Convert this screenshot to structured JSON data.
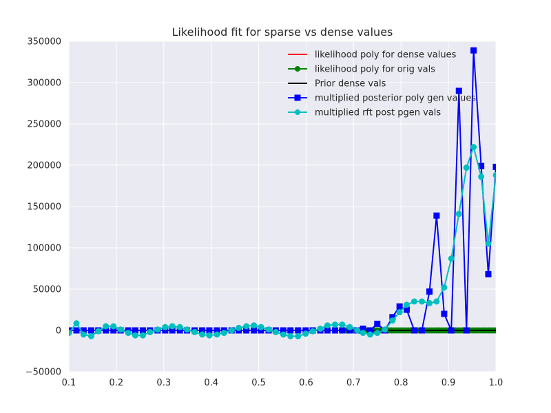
{
  "chart_data": {
    "type": "line",
    "title": "Likelihood fit for sparse vs dense values",
    "xlabel": "",
    "ylabel": "",
    "xlim": [
      0.1,
      1.0
    ],
    "ylim": [
      -50000,
      350000
    ],
    "x_ticks": [
      0.1,
      0.2,
      0.3,
      0.4,
      0.5,
      0.6,
      0.7,
      0.8,
      0.9,
      1.0
    ],
    "x_tick_labels": [
      "0.1",
      "0.2",
      "0.3",
      "0.4",
      "0.5",
      "0.6",
      "0.7",
      "0.8",
      "0.9",
      "1.0"
    ],
    "y_ticks": [
      -50000,
      0,
      50000,
      100000,
      150000,
      200000,
      250000,
      300000,
      350000
    ],
    "y_tick_labels": [
      "−50000",
      "0",
      "50000",
      "100000",
      "150000",
      "200000",
      "250000",
      "300000",
      "350000"
    ],
    "grid": true,
    "background": "#eaeaf2",
    "legend_position": "top-right",
    "series": [
      {
        "name": "likelihood poly for dense values",
        "color": "#ff0000",
        "marker": "none",
        "x": [
          0.675,
          1.0
        ],
        "y": [
          0,
          0
        ]
      },
      {
        "name": "likelihood poly for orig vals",
        "color": "#008000",
        "marker": "circle",
        "x": [
          0.675,
          0.68,
          0.685,
          0.69,
          0.695,
          0.7,
          0.705,
          0.71,
          0.715,
          0.72,
          0.725,
          0.73,
          0.735,
          0.74,
          0.745,
          0.75,
          0.755,
          0.76,
          0.765,
          0.77,
          0.775,
          0.78,
          0.785,
          0.79,
          0.795,
          0.8,
          0.805,
          0.81,
          0.815,
          0.82,
          0.825,
          0.83,
          0.835,
          0.84,
          0.845,
          0.85,
          0.855,
          0.86,
          0.865,
          0.87,
          0.875,
          0.88,
          0.885,
          0.89,
          0.895,
          0.9,
          0.905,
          0.91,
          0.915,
          0.92,
          0.925,
          0.93,
          0.935,
          0.94,
          0.945,
          0.95,
          0.955,
          0.96,
          0.965,
          0.97,
          0.975,
          0.98,
          0.985,
          0.99,
          0.995,
          1.0
        ],
        "y": [
          0,
          0,
          0,
          0,
          0,
          0,
          0,
          0,
          0,
          0,
          0,
          0,
          0,
          0,
          0,
          0,
          0,
          0,
          0,
          0,
          0,
          0,
          0,
          0,
          0,
          0,
          0,
          0,
          0,
          0,
          0,
          0,
          0,
          0,
          0,
          0,
          0,
          0,
          0,
          0,
          0,
          0,
          0,
          0,
          0,
          0,
          0,
          0,
          0,
          0,
          0,
          0,
          0,
          0,
          0,
          0,
          0,
          0,
          0,
          0,
          0,
          0,
          0,
          0,
          0,
          0
        ]
      },
      {
        "name": "Prior dense vals",
        "color": "#000000",
        "marker": "none",
        "x": [
          0.675,
          1.0
        ],
        "y": [
          0,
          0
        ]
      },
      {
        "name": "multiplied posterior poly gen values",
        "color": "#0000ff",
        "marker": "square",
        "x": [
          0.1,
          0.116,
          0.131,
          0.147,
          0.162,
          0.178,
          0.194,
          0.209,
          0.225,
          0.24,
          0.256,
          0.271,
          0.287,
          0.303,
          0.318,
          0.334,
          0.349,
          0.365,
          0.381,
          0.396,
          0.412,
          0.427,
          0.443,
          0.458,
          0.474,
          0.49,
          0.505,
          0.521,
          0.536,
          0.552,
          0.567,
          0.583,
          0.599,
          0.614,
          0.63,
          0.645,
          0.661,
          0.676,
          0.692,
          0.708,
          0.72,
          0.735,
          0.75,
          0.766,
          0.782,
          0.797,
          0.812,
          0.828,
          0.844,
          0.86,
          0.875,
          0.891,
          0.906,
          0.922,
          0.938,
          0.953,
          0.969,
          0.984,
          1.0
        ],
        "y": [
          0,
          0,
          0,
          0,
          0,
          0,
          0,
          0,
          0,
          0,
          0,
          0,
          0,
          0,
          0,
          0,
          0,
          0,
          0,
          0,
          0,
          0,
          0,
          0,
          0,
          0,
          0,
          0,
          0,
          0,
          0,
          0,
          0,
          0,
          0,
          0,
          0,
          0,
          0,
          0,
          2000,
          0,
          8000,
          0,
          16000,
          29000,
          25000,
          0,
          0,
          47000,
          139000,
          20000,
          0,
          290000,
          0,
          339000,
          199000,
          68000,
          198000
        ]
      },
      {
        "name": "multiplied rft post pgen vals",
        "color": "#00bfbf",
        "marker": "circle",
        "x": [
          0.1,
          0.116,
          0.131,
          0.147,
          0.162,
          0.178,
          0.194,
          0.209,
          0.225,
          0.24,
          0.256,
          0.271,
          0.287,
          0.303,
          0.318,
          0.334,
          0.349,
          0.365,
          0.381,
          0.396,
          0.412,
          0.427,
          0.443,
          0.458,
          0.474,
          0.49,
          0.505,
          0.521,
          0.536,
          0.552,
          0.567,
          0.583,
          0.599,
          0.614,
          0.63,
          0.645,
          0.661,
          0.676,
          0.692,
          0.708,
          0.72,
          0.735,
          0.75,
          0.766,
          0.782,
          0.797,
          0.812,
          0.828,
          0.844,
          0.86,
          0.875,
          0.891,
          0.906,
          0.922,
          0.938,
          0.953,
          0.969,
          0.984,
          1.0
        ],
        "y": [
          -3000,
          8500,
          -5000,
          -7000,
          -1000,
          5000,
          5000,
          1000,
          -3000,
          -6000,
          -6000,
          -2000,
          1000,
          4000,
          5000,
          4000,
          1000,
          -2000,
          -5000,
          -6000,
          -5000,
          -3000,
          0,
          3000,
          5000,
          6000,
          4000,
          1000,
          -2000,
          -5000,
          -7000,
          -7000,
          -4000,
          -1000,
          2000,
          6000,
          7000,
          7000,
          4000,
          0,
          -3000,
          -5000,
          -3000,
          1000,
          12000,
          22000,
          31000,
          35000,
          35000,
          33000,
          35000,
          52000,
          87000,
          141000,
          197000,
          222000,
          186000,
          105000,
          188000
        ]
      }
    ]
  }
}
